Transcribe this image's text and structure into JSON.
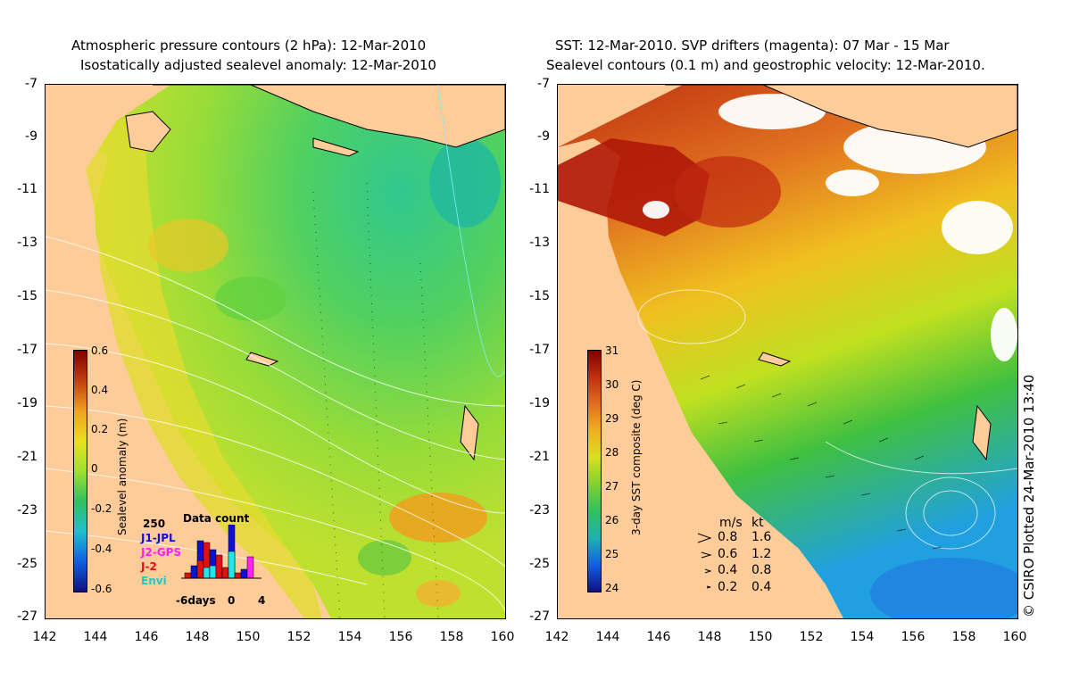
{
  "left_panel": {
    "title_line1": "Atmospheric pressure contours (2 hPa): 12-Mar-2010",
    "title_line2": "Isostatically adjusted sealevel anomaly: 12-Mar-2010",
    "colorbar": {
      "label": "Sealevel anomaly (m)",
      "ticks": [
        "0.6",
        "0.4",
        "0.2",
        "0",
        "-0.2",
        "-0.4",
        "-0.6"
      ]
    },
    "data_count": {
      "title": "Data count",
      "max_label": "250",
      "legend": [
        {
          "name": "J1-JPL",
          "color": "#1010d0"
        },
        {
          "name": "J2-GPS",
          "color": "#ff20ff"
        },
        {
          "name": "J-2",
          "color": "#e01010"
        },
        {
          "name": "Envi",
          "color": "#20e8e8"
        }
      ],
      "x_labels": [
        "-6days",
        "0",
        "4"
      ]
    }
  },
  "right_panel": {
    "title_line1": "SST: 12-Mar-2010. SVP drifters (magenta): 07 Mar - 15 Mar",
    "title_line2": "Sealevel contours (0.1 m) and geostrophic velocity: 12-Mar-2010.",
    "colorbar": {
      "label": "3-day SST composite (deg C)",
      "ticks": [
        "31",
        "30",
        "29",
        "28",
        "27",
        "26",
        "25",
        "24"
      ]
    },
    "velocity_legend": {
      "header_ms": "m/s",
      "header_kt": "kt",
      "rows": [
        {
          "ms": "0.8",
          "kt": "1.6"
        },
        {
          "ms": "0.6",
          "kt": "1.2"
        },
        {
          "ms": "0.4",
          "kt": "0.8"
        },
        {
          "ms": "0.2",
          "kt": "0.4"
        }
      ]
    }
  },
  "axes": {
    "y_ticks": [
      "-7",
      "-9",
      "-11",
      "-13",
      "-15",
      "-17",
      "-19",
      "-21",
      "-23",
      "-25",
      "-27"
    ],
    "x_ticks": [
      "142",
      "144",
      "146",
      "148",
      "150",
      "152",
      "154",
      "156",
      "158",
      "160"
    ]
  },
  "credit": "© CSIRO Plotted 24-Mar-2010 13:40",
  "colors": {
    "land": "#fdcc99",
    "sla_mid": "#a8e030",
    "sst_warm": "#b02010",
    "sst_cool": "#20a0e0"
  }
}
